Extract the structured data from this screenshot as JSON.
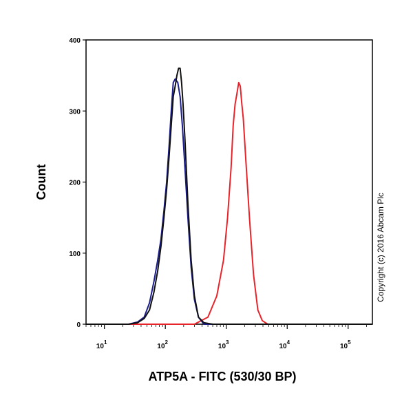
{
  "chart_data": {
    "type": "line",
    "xlabel": "ATP5A - FITC (530/30 BP)",
    "ylabel": "Count",
    "x_scale": "log",
    "xlim": [
      5,
      250000
    ],
    "ylim": [
      0,
      400
    ],
    "y_ticks": [
      0,
      100,
      200,
      300,
      400
    ],
    "x_ticks": [
      {
        "value": 10,
        "base": "10",
        "exp": "1"
      },
      {
        "value": 100,
        "base": "10",
        "exp": "2"
      },
      {
        "value": 1000,
        "base": "10",
        "exp": "3"
      },
      {
        "value": 10000,
        "base": "10",
        "exp": "4"
      },
      {
        "value": 100000,
        "base": "10",
        "exp": "5"
      }
    ],
    "grid": false,
    "copyright": "Copyright (c) 2016 Abcam Plc",
    "series": [
      {
        "color": "#e8232a",
        "x": [
          5,
          300,
          500,
          700,
          900,
          1050,
          1200,
          1300,
          1400,
          1500,
          1600,
          1700,
          1800,
          1900,
          2100,
          2400,
          2800,
          3300,
          3900,
          4800,
          6000,
          250000
        ],
        "y": [
          0,
          0,
          10,
          40,
          90,
          150,
          220,
          280,
          310,
          325,
          340,
          335,
          310,
          290,
          230,
          150,
          70,
          20,
          5,
          0,
          0,
          0
        ]
      },
      {
        "color": "#1b1d8c",
        "x": [
          5,
          25,
          35,
          45,
          55,
          65,
          75,
          85,
          95,
          105,
          115,
          125,
          135,
          145,
          160,
          175,
          190,
          210,
          235,
          265,
          300,
          350,
          430,
          600,
          250000
        ],
        "y": [
          0,
          0,
          3,
          10,
          30,
          60,
          90,
          120,
          160,
          200,
          250,
          300,
          340,
          345,
          340,
          320,
          280,
          220,
          150,
          80,
          35,
          10,
          0,
          0,
          0
        ]
      },
      {
        "color": "#111111",
        "x": [
          5,
          25,
          35,
          45,
          55,
          65,
          75,
          85,
          95,
          105,
          115,
          125,
          135,
          145,
          155,
          165,
          175,
          185,
          195,
          210,
          235,
          265,
          300,
          350,
          430,
          600,
          250000
        ],
        "y": [
          0,
          0,
          2,
          8,
          20,
          45,
          75,
          110,
          150,
          190,
          235,
          280,
          320,
          335,
          350,
          360,
          360,
          340,
          310,
          260,
          170,
          90,
          40,
          10,
          2,
          0,
          0
        ]
      }
    ]
  }
}
